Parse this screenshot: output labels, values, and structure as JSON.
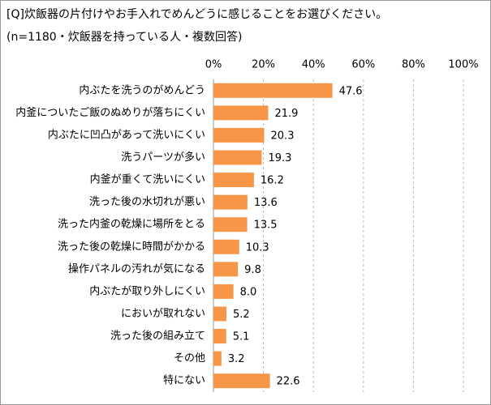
{
  "chart_data": {
    "type": "bar",
    "orientation": "horizontal",
    "title": "[Q]炊飯器の片付けやお手入れでめんどうに感じることをお選びください。",
    "subtitle": "(n=1180・炊飯器を持っている人・複数回答)",
    "categories": [
      "内ぶたを洗うのがめんどう",
      "内釜についたご飯のぬめりが落ちにくい",
      "内ぶたに凹凸があって洗いにくい",
      "洗うパーツが多い",
      "内釜が重くて洗いにくい",
      "洗った後の水切れが悪い",
      "洗った内釜の乾燥に場所をとる",
      "洗った後の乾燥に時間がかかる",
      "操作パネルの汚れが気になる",
      "内ぶたが取り外しにくい",
      "においが取れない",
      "洗った後の組み立て",
      "その他",
      "特にない"
    ],
    "values": [
      47.6,
      21.9,
      20.3,
      19.3,
      16.2,
      13.6,
      13.5,
      10.3,
      9.8,
      8.0,
      5.2,
      5.1,
      3.2,
      22.6
    ],
    "value_labels": [
      "47.6",
      "21.9",
      "20.3",
      "19.3",
      "16.2",
      "13.6",
      "13.5",
      "10.3",
      "9.8",
      "8.0",
      "5.2",
      "5.1",
      "3.2",
      "22.6"
    ],
    "color": "#f79646",
    "xlim": [
      0,
      100
    ],
    "xticks": [
      {
        "value": 0,
        "label": "0%"
      },
      {
        "value": 20,
        "label": "20%"
      },
      {
        "value": 40,
        "label": "40%"
      },
      {
        "value": 60,
        "label": "60%"
      },
      {
        "value": 80,
        "label": "80%"
      },
      {
        "value": 100,
        "label": "100%"
      }
    ],
    "grid": true
  }
}
